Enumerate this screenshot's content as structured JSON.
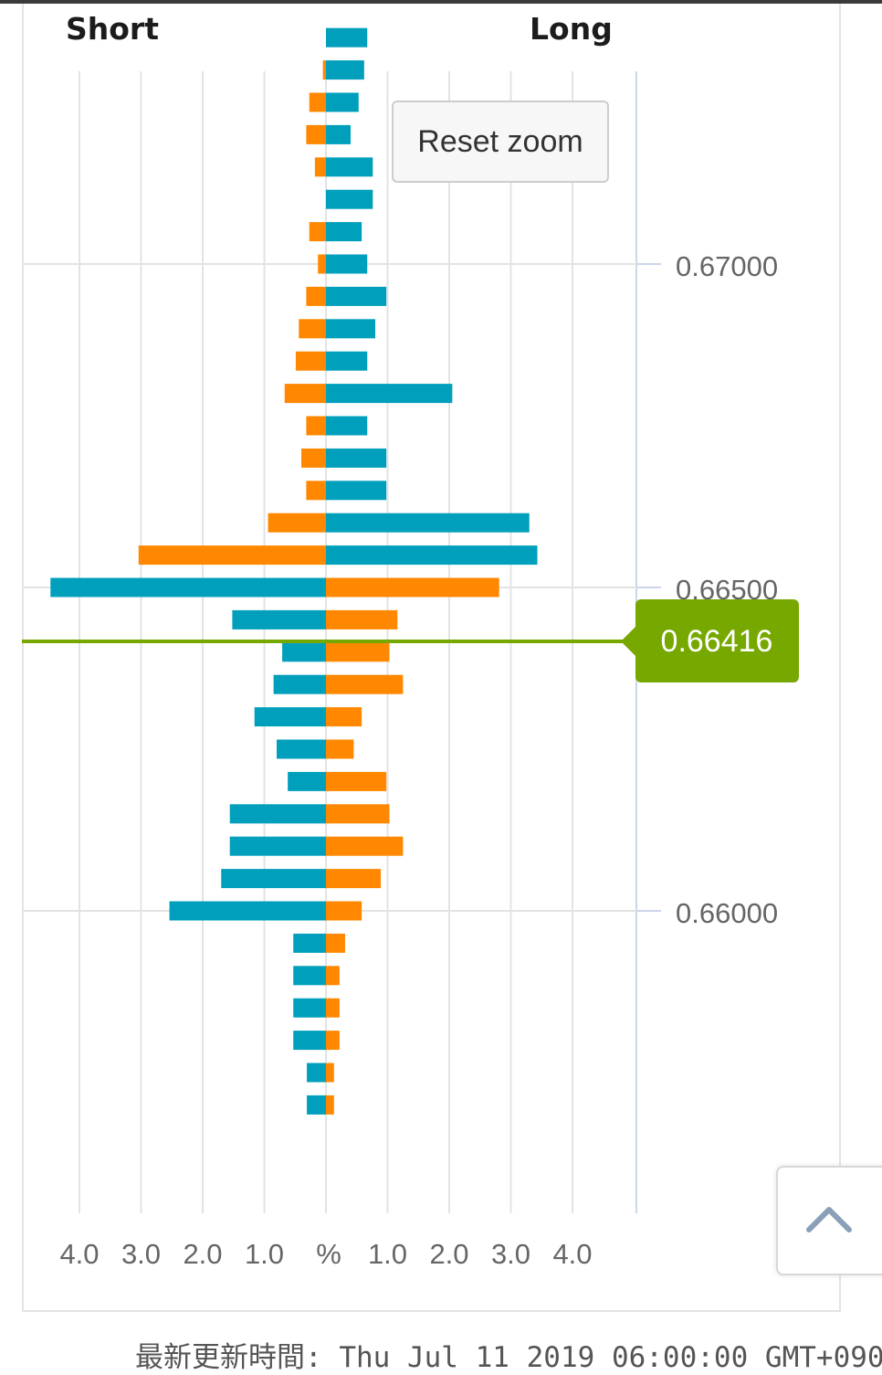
{
  "header": {
    "short_label": "Short",
    "long_label": "Long"
  },
  "reset_zoom_label": "Reset zoom",
  "footer": {
    "updated_text": "最新更新時間: Thu Jul 11 2019 06:00:00 GMT+0900"
  },
  "colors": {
    "teal": "#00a0bc",
    "orange": "#ff8800",
    "current_price": "#76a800",
    "grid": "#e3e3e3",
    "axis": "#ccd6eb"
  },
  "icons": {
    "scroll_top": "chevron-up-icon"
  },
  "chart_data": {
    "type": "bar",
    "orientation": "horizontal-diverging",
    "x_axis": {
      "left_ticks": [
        "4.0",
        "3.0",
        "2.0",
        "1.0"
      ],
      "center_label": "%",
      "right_ticks": [
        "1.0",
        "2.0",
        "3.0",
        "4.0"
      ],
      "range": [
        -4.8,
        5.0
      ]
    },
    "y_axis": {
      "tick_labels": [
        "0.67000",
        "0.66500",
        "0.66000"
      ],
      "range": [
        0.6555,
        0.674
      ]
    },
    "current_price": {
      "value": 0.66416,
      "label": "0.66416"
    },
    "levels": [
      {
        "price": 0.6735,
        "short_orange": 0.0,
        "long_teal": 0.67
      },
      {
        "price": 0.673,
        "short_orange": 0.05,
        "long_teal": 0.62
      },
      {
        "price": 0.6725,
        "short_orange": 0.27,
        "long_teal": 0.53
      },
      {
        "price": 0.672,
        "short_orange": 0.32,
        "long_teal": 0.4
      },
      {
        "price": 0.6715,
        "short_orange": 0.18,
        "long_teal": 0.76
      },
      {
        "price": 0.671,
        "short_orange": 0.0,
        "long_teal": 0.76
      },
      {
        "price": 0.6705,
        "short_orange": 0.27,
        "long_teal": 0.58
      },
      {
        "price": 0.67,
        "short_orange": 0.13,
        "long_teal": 0.67
      },
      {
        "price": 0.6695,
        "short_orange": 0.32,
        "long_teal": 0.98
      },
      {
        "price": 0.669,
        "short_orange": 0.44,
        "long_teal": 0.8
      },
      {
        "price": 0.6685,
        "short_orange": 0.49,
        "long_teal": 0.67
      },
      {
        "price": 0.668,
        "short_orange": 0.67,
        "long_teal": 2.05
      },
      {
        "price": 0.6675,
        "short_orange": 0.32,
        "long_teal": 0.67
      },
      {
        "price": 0.667,
        "short_orange": 0.4,
        "long_teal": 0.98
      },
      {
        "price": 0.6665,
        "short_orange": 0.32,
        "long_teal": 0.98
      },
      {
        "price": 0.666,
        "short_orange": 0.94,
        "long_teal": 3.3
      },
      {
        "price": 0.6655,
        "short_orange": 3.04,
        "long_teal": 3.43
      },
      {
        "price": 0.665,
        "short_teal": 4.47,
        "long_orange": 2.81
      },
      {
        "price": 0.6645,
        "short_teal": 1.52,
        "long_orange": 1.16
      },
      {
        "price": 0.664,
        "short_teal": 0.71,
        "long_orange": 1.03
      },
      {
        "price": 0.6635,
        "short_teal": 0.85,
        "long_orange": 1.25
      },
      {
        "price": 0.663,
        "short_teal": 1.16,
        "long_orange": 0.58
      },
      {
        "price": 0.6625,
        "short_teal": 0.8,
        "long_orange": 0.45
      },
      {
        "price": 0.662,
        "short_teal": 0.62,
        "long_orange": 0.98
      },
      {
        "price": 0.6615,
        "short_teal": 1.56,
        "long_orange": 1.03
      },
      {
        "price": 0.661,
        "short_teal": 1.56,
        "long_orange": 1.25
      },
      {
        "price": 0.6605,
        "short_teal": 1.7,
        "long_orange": 0.89
      },
      {
        "price": 0.66,
        "short_teal": 2.54,
        "long_orange": 0.58
      },
      {
        "price": 0.6595,
        "short_teal": 0.53,
        "long_orange": 0.31
      },
      {
        "price": 0.659,
        "short_teal": 0.53,
        "long_orange": 0.22
      },
      {
        "price": 0.6585,
        "short_teal": 0.53,
        "long_orange": 0.22
      },
      {
        "price": 0.658,
        "short_teal": 0.53,
        "long_orange": 0.22
      },
      {
        "price": 0.6575,
        "short_teal": 0.31,
        "long_orange": 0.13
      },
      {
        "price": 0.657,
        "short_teal": 0.31,
        "long_orange": 0.13
      }
    ]
  }
}
